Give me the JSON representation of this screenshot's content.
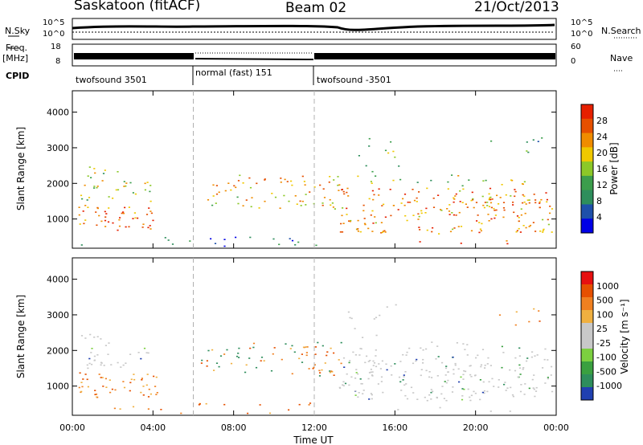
{
  "header": {
    "station": "Saskatoon (fitACF)",
    "beam": "Beam 02",
    "date": "21/Oct/2013"
  },
  "strips": {
    "nsky_label": "N.Sky",
    "nsky_ticks": [
      "10^5",
      "10^0"
    ],
    "nsearch_label": "N.Search",
    "nsearch_ticks": [
      "10^5",
      "10^0"
    ],
    "freq_label": "Freq.",
    "freq_unit": "[MHz]",
    "freq_ticks": [
      "18",
      "8"
    ],
    "nave_label": "Nave",
    "nave_ticks": [
      "60",
      "0"
    ],
    "cpid_label": "CPID",
    "cpid_segments": [
      {
        "label": "twofsound 3501",
        "start": 0,
        "end": 6
      },
      {
        "label": "normal (fast) 151",
        "start": 6,
        "end": 12
      },
      {
        "label": "twofsound -3501",
        "start": 12,
        "end": 24
      }
    ]
  },
  "chart_data": [
    {
      "type": "heatmap",
      "ylabel": "Slant Range [km]",
      "yticks": [
        "1000",
        "2000",
        "3000",
        "4000"
      ],
      "ylim": [
        180,
        4600
      ],
      "xlim": [
        0,
        24
      ],
      "colorbar_label": "Power [dB]",
      "colorbar_ticks": [
        "28",
        "24",
        "20",
        "16",
        "12",
        "8",
        "4"
      ],
      "colors": [
        "#0000e6",
        "#1e50aa",
        "#2e8e5c",
        "#3c9e4c",
        "#8cc828",
        "#f0c800",
        "#f08c00",
        "#e65000",
        "#e62000"
      ]
    },
    {
      "type": "heatmap",
      "ylabel": "Slant Range [km]",
      "yticks": [
        "1000",
        "2000",
        "3000",
        "4000"
      ],
      "ylim": [
        180,
        4600
      ],
      "xlim": [
        0,
        24
      ],
      "xticks": [
        "00:00",
        "04:00",
        "08:00",
        "12:00",
        "16:00",
        "20:00",
        "00:00"
      ],
      "xlabel": "Time UT",
      "colorbar_label": "Velocity [m s⁻¹]",
      "colorbar_ticks": [
        "1000",
        "500",
        "100",
        "25",
        "-25",
        "-100",
        "-500",
        "-1000"
      ],
      "colors": [
        "#2040b0",
        "#2e8e5c",
        "#3aa040",
        "#7cd040",
        "#c8c8c8",
        "#c8c8c8",
        "#f0b040",
        "#f08020",
        "#e65000",
        "#e61010"
      ]
    }
  ]
}
